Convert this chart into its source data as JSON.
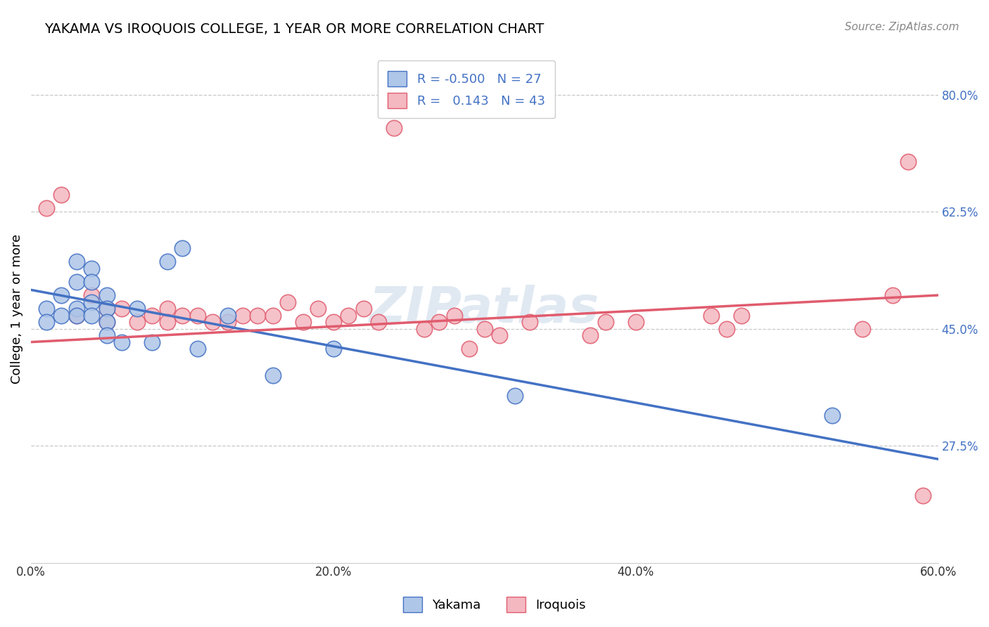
{
  "title": "YAKAMA VS IROQUOIS COLLEGE, 1 YEAR OR MORE CORRELATION CHART",
  "ylabel": "College, 1 year or more",
  "source_text": "Source: ZipAtlas.com",
  "xlim": [
    0.0,
    0.6
  ],
  "ylim": [
    0.1,
    0.86
  ],
  "xtick_labels": [
    "0.0%",
    "20.0%",
    "40.0%",
    "60.0%"
  ],
  "xtick_values": [
    0.0,
    0.2,
    0.4,
    0.6
  ],
  "ytick_labels": [
    "27.5%",
    "45.0%",
    "62.5%",
    "80.0%"
  ],
  "ytick_values": [
    0.275,
    0.45,
    0.625,
    0.8
  ],
  "blue_line_color": "#4472c4",
  "pink_line_color": "#e05c6e",
  "blue_dot_color": "#aec6e8",
  "pink_dot_color": "#f4b8c1",
  "background_color": "#ffffff",
  "grid_color": "#c8c8c8",
  "blue_scatter_x": [
    0.01,
    0.01,
    0.02,
    0.02,
    0.03,
    0.03,
    0.03,
    0.03,
    0.04,
    0.04,
    0.04,
    0.04,
    0.05,
    0.05,
    0.05,
    0.05,
    0.06,
    0.07,
    0.08,
    0.09,
    0.1,
    0.11,
    0.13,
    0.16,
    0.2,
    0.32,
    0.53
  ],
  "blue_scatter_y": [
    0.48,
    0.46,
    0.5,
    0.47,
    0.55,
    0.52,
    0.48,
    0.47,
    0.54,
    0.52,
    0.49,
    0.47,
    0.5,
    0.48,
    0.46,
    0.44,
    0.43,
    0.48,
    0.43,
    0.55,
    0.57,
    0.42,
    0.47,
    0.38,
    0.42,
    0.35,
    0.32
  ],
  "pink_scatter_x": [
    0.01,
    0.02,
    0.03,
    0.04,
    0.05,
    0.05,
    0.06,
    0.07,
    0.08,
    0.09,
    0.09,
    0.1,
    0.11,
    0.12,
    0.13,
    0.14,
    0.15,
    0.16,
    0.17,
    0.18,
    0.19,
    0.2,
    0.21,
    0.22,
    0.23,
    0.24,
    0.26,
    0.27,
    0.28,
    0.29,
    0.3,
    0.31,
    0.33,
    0.37,
    0.38,
    0.4,
    0.45,
    0.46,
    0.47,
    0.55,
    0.57,
    0.58,
    0.59
  ],
  "pink_scatter_y": [
    0.63,
    0.65,
    0.47,
    0.5,
    0.48,
    0.46,
    0.48,
    0.46,
    0.47,
    0.48,
    0.46,
    0.47,
    0.47,
    0.46,
    0.46,
    0.47,
    0.47,
    0.47,
    0.49,
    0.46,
    0.48,
    0.46,
    0.47,
    0.48,
    0.46,
    0.75,
    0.45,
    0.46,
    0.47,
    0.42,
    0.45,
    0.44,
    0.46,
    0.44,
    0.46,
    0.46,
    0.47,
    0.45,
    0.47,
    0.45,
    0.5,
    0.7,
    0.2
  ],
  "blue_line_x0": 0.0,
  "blue_line_y0": 0.508,
  "blue_line_x1": 0.6,
  "blue_line_y1": 0.255,
  "pink_line_x0": 0.0,
  "pink_line_y0": 0.43,
  "pink_line_x1": 0.6,
  "pink_line_y1": 0.5
}
